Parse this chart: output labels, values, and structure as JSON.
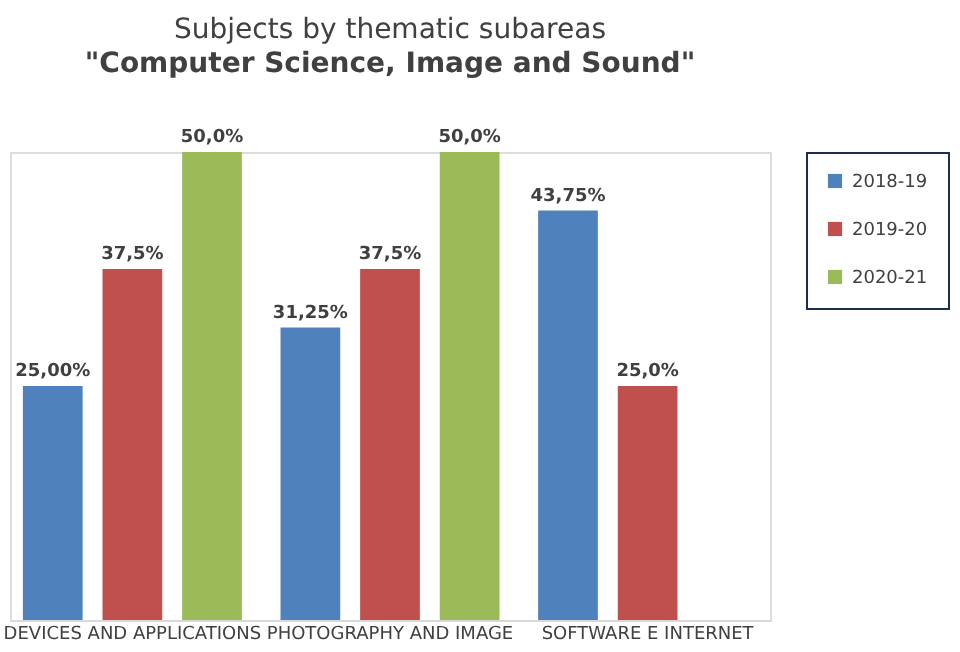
{
  "chart_data": {
    "type": "bar",
    "title": "Subjects by thematic subareas",
    "subtitle": "\"Computer Science, Image and Sound\"",
    "categories": [
      "DEVICES AND APPLICATIONS",
      "PHOTOGRAPHY AND IMAGE",
      "SOFTWARE E INTERNET"
    ],
    "series": [
      {
        "name": "2018-19",
        "color": "#4f81bd",
        "values": [
          25.0,
          31.25,
          43.75
        ],
        "value_labels": [
          "25,00%",
          "31,25%",
          "43,75%"
        ]
      },
      {
        "name": "2019-20",
        "color": "#c0504d",
        "values": [
          37.5,
          37.5,
          25.0
        ],
        "value_labels": [
          "37,5%",
          "37,5%",
          "25,0%"
        ]
      },
      {
        "name": "2020-21",
        "color": "#9bbb59",
        "values": [
          50.0,
          50.0,
          null
        ],
        "value_labels": [
          "50,0%",
          "50,0%",
          null
        ]
      }
    ],
    "legend": "right",
    "grid": false
  }
}
